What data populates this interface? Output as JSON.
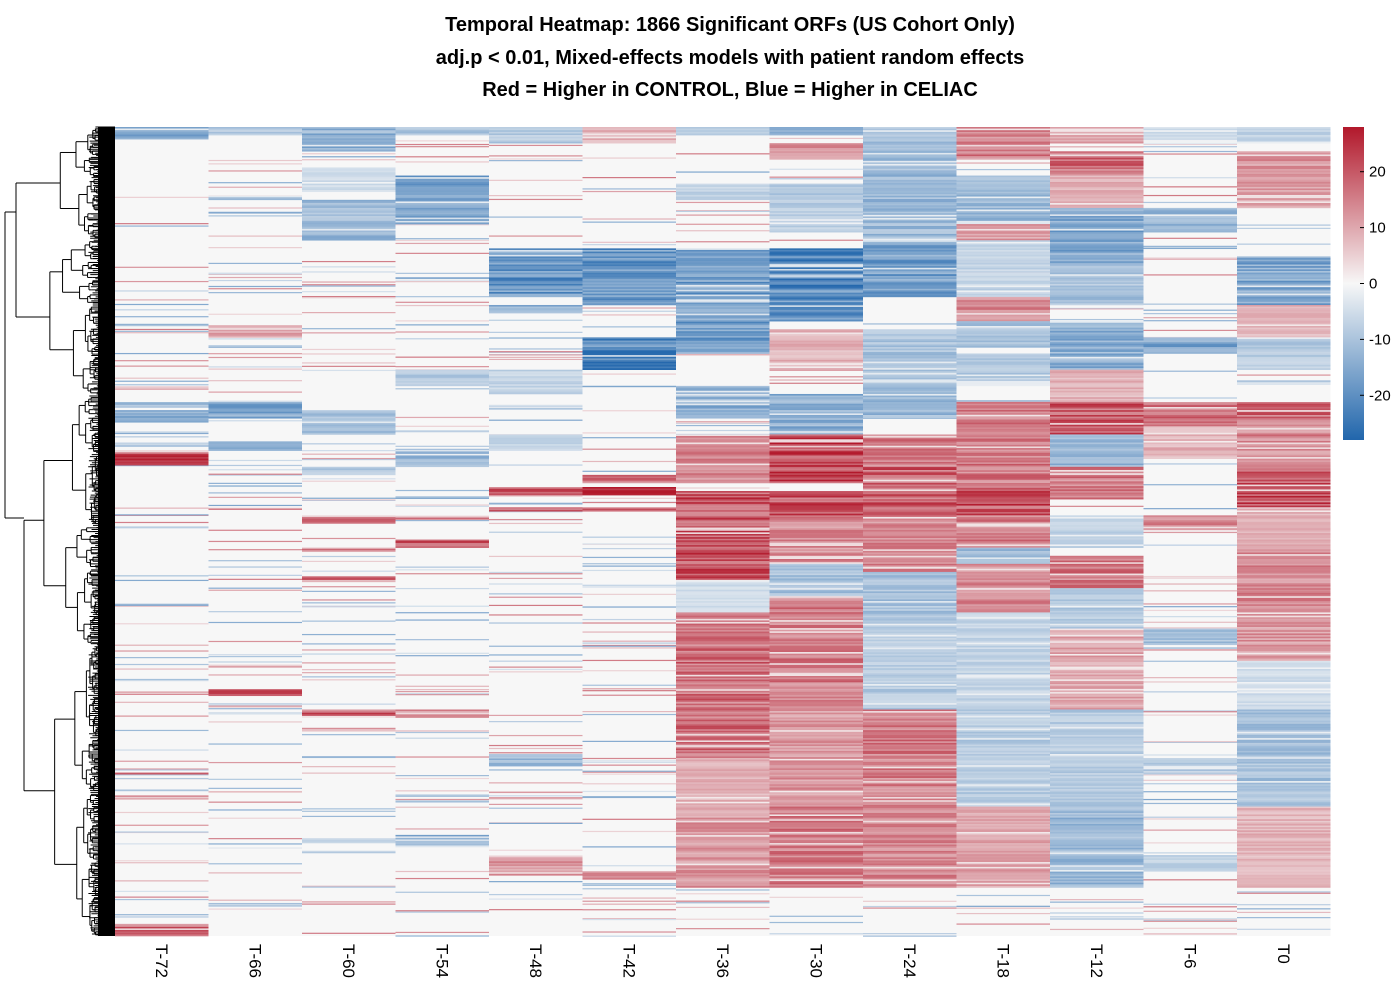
{
  "chart_data": {
    "type": "heatmap",
    "title": "Temporal Heatmap: 1866 Significant ORFs (US Cohort Only)",
    "subtitle": "adj.p < 0.01, Mixed-effects models with patient random effects",
    "subtitle2": "Red = Higher in CONTROL, Blue = Higher in CELIAC",
    "columns": [
      "T-72",
      "T-66",
      "T-60",
      "T-54",
      "T-48",
      "T-42",
      "T-36",
      "T-30",
      "T-24",
      "T-18",
      "T-12",
      "T-6",
      "T0"
    ],
    "n_rows": 1866,
    "row_dendrogram": true,
    "colorbar": {
      "range": [
        -28,
        28
      ],
      "ticks": [
        -20,
        -10,
        0,
        10,
        20
      ],
      "low_color": "#2166ac",
      "mid_color": "#f7f7f7",
      "high_color": "#b2182b",
      "placement": "right"
    },
    "column_blocks": [
      {
        "column": "T-72",
        "blocks": [
          [
            0,
            0.015,
            -18
          ],
          [
            0.34,
            0.345,
            -14
          ],
          [
            0.35,
            0.365,
            -16
          ],
          [
            0.39,
            0.395,
            -10
          ],
          [
            0.4,
            0.418,
            24
          ],
          [
            0.798,
            0.8,
            18
          ],
          [
            0.985,
            1.0,
            20
          ]
        ]
      },
      {
        "column": "T-66",
        "blocks": [
          [
            0,
            0.01,
            -10
          ],
          [
            0.085,
            0.09,
            -14
          ],
          [
            0.18,
            0.182,
            -8
          ],
          [
            0.245,
            0.26,
            12
          ],
          [
            0.34,
            0.36,
            -18
          ],
          [
            0.39,
            0.4,
            -14
          ],
          [
            0.47,
            0.473,
            14
          ],
          [
            0.695,
            0.703,
            22
          ],
          [
            0.715,
            0.717,
            10
          ],
          [
            0.89,
            0.892,
            -8
          ]
        ]
      },
      {
        "column": "T-60",
        "blocks": [
          [
            0,
            0.03,
            -16
          ],
          [
            0.05,
            0.08,
            -6
          ],
          [
            0.09,
            0.14,
            -14
          ],
          [
            0.35,
            0.38,
            -12
          ],
          [
            0.42,
            0.43,
            -10
          ],
          [
            0.48,
            0.49,
            18
          ],
          [
            0.52,
            0.525,
            16
          ],
          [
            0.555,
            0.56,
            20
          ],
          [
            0.72,
            0.73,
            22
          ],
          [
            0.88,
            0.885,
            -10
          ]
        ]
      },
      {
        "column": "T-54",
        "blocks": [
          [
            0,
            0.01,
            -12
          ],
          [
            0.06,
            0.12,
            -18
          ],
          [
            0.3,
            0.32,
            -10
          ],
          [
            0.4,
            0.42,
            -14
          ],
          [
            0.48,
            0.485,
            18
          ],
          [
            0.51,
            0.52,
            24
          ],
          [
            0.72,
            0.73,
            16
          ],
          [
            0.875,
            0.89,
            -16
          ]
        ]
      },
      {
        "column": "T-48",
        "blocks": [
          [
            0,
            0.02,
            -10
          ],
          [
            0.15,
            0.21,
            -22
          ],
          [
            0.22,
            0.23,
            -16
          ],
          [
            0.3,
            0.33,
            -8
          ],
          [
            0.38,
            0.4,
            -8
          ],
          [
            0.445,
            0.455,
            24
          ],
          [
            0.47,
            0.475,
            20
          ],
          [
            0.775,
            0.79,
            -14
          ],
          [
            0.9,
            0.925,
            14
          ]
        ]
      },
      {
        "column": "T-42",
        "blocks": [
          [
            0,
            0.02,
            10
          ],
          [
            0.15,
            0.22,
            -22
          ],
          [
            0.26,
            0.3,
            -24
          ],
          [
            0.43,
            0.44,
            20
          ],
          [
            0.445,
            0.455,
            26
          ],
          [
            0.47,
            0.475,
            22
          ],
          [
            0.92,
            0.93,
            14
          ]
        ]
      },
      {
        "column": "T-36",
        "blocks": [
          [
            0,
            0.01,
            -10
          ],
          [
            0.07,
            0.09,
            -8
          ],
          [
            0.15,
            0.28,
            -20
          ],
          [
            0.32,
            0.36,
            -16
          ],
          [
            0.38,
            0.44,
            16
          ],
          [
            0.45,
            0.56,
            24
          ],
          [
            0.56,
            0.62,
            -6
          ],
          [
            0.6,
            0.78,
            20
          ],
          [
            0.78,
            0.84,
            10
          ],
          [
            0.84,
            0.94,
            14
          ]
        ]
      },
      {
        "column": "T-30",
        "blocks": [
          [
            0,
            0.01,
            -22
          ],
          [
            0.02,
            0.04,
            16
          ],
          [
            0.07,
            0.13,
            -10
          ],
          [
            0.15,
            0.24,
            -24
          ],
          [
            0.25,
            0.3,
            10
          ],
          [
            0.33,
            0.38,
            -16
          ],
          [
            0.38,
            0.44,
            26
          ],
          [
            0.45,
            0.48,
            24
          ],
          [
            0.48,
            0.54,
            16
          ],
          [
            0.54,
            0.58,
            -12
          ],
          [
            0.58,
            0.72,
            18
          ],
          [
            0.72,
            0.84,
            14
          ],
          [
            0.84,
            0.94,
            18
          ]
        ]
      },
      {
        "column": "T-24",
        "blocks": [
          [
            0,
            0.03,
            -12
          ],
          [
            0.03,
            0.14,
            -14
          ],
          [
            0.14,
            0.21,
            -20
          ],
          [
            0.25,
            0.3,
            -12
          ],
          [
            0.3,
            0.36,
            -14
          ],
          [
            0.38,
            0.42,
            18
          ],
          [
            0.42,
            0.48,
            22
          ],
          [
            0.48,
            0.55,
            16
          ],
          [
            0.55,
            0.62,
            -12
          ],
          [
            0.62,
            0.72,
            -10
          ],
          [
            0.72,
            0.84,
            18
          ],
          [
            0.84,
            0.94,
            16
          ]
        ]
      },
      {
        "column": "T-18",
        "blocks": [
          [
            0,
            0.04,
            18
          ],
          [
            0.06,
            0.12,
            -14
          ],
          [
            0.12,
            0.14,
            14
          ],
          [
            0.14,
            0.21,
            -8
          ],
          [
            0.21,
            0.24,
            16
          ],
          [
            0.24,
            0.27,
            -12
          ],
          [
            0.28,
            0.32,
            -10
          ],
          [
            0.34,
            0.44,
            18
          ],
          [
            0.44,
            0.48,
            24
          ],
          [
            0.48,
            0.52,
            18
          ],
          [
            0.52,
            0.54,
            -16
          ],
          [
            0.54,
            0.6,
            16
          ],
          [
            0.6,
            0.72,
            -8
          ],
          [
            0.72,
            0.84,
            -10
          ],
          [
            0.84,
            0.94,
            12
          ]
        ]
      },
      {
        "column": "T-12",
        "blocks": [
          [
            0,
            0.02,
            12
          ],
          [
            0.03,
            0.06,
            20
          ],
          [
            0.06,
            0.1,
            10
          ],
          [
            0.1,
            0.17,
            -18
          ],
          [
            0.17,
            0.22,
            -12
          ],
          [
            0.24,
            0.3,
            -16
          ],
          [
            0.3,
            0.34,
            10
          ],
          [
            0.34,
            0.38,
            24
          ],
          [
            0.38,
            0.42,
            -14
          ],
          [
            0.42,
            0.46,
            18
          ],
          [
            0.48,
            0.52,
            -8
          ],
          [
            0.53,
            0.57,
            18
          ],
          [
            0.57,
            0.62,
            -10
          ],
          [
            0.62,
            0.72,
            12
          ],
          [
            0.72,
            0.84,
            -10
          ],
          [
            0.84,
            0.94,
            -14
          ]
        ]
      },
      {
        "column": "T-6",
        "blocks": [
          [
            0,
            0.02,
            -6
          ],
          [
            0.1,
            0.13,
            -14
          ],
          [
            0.26,
            0.28,
            -20
          ],
          [
            0.34,
            0.37,
            20
          ],
          [
            0.37,
            0.41,
            10
          ],
          [
            0.48,
            0.5,
            18
          ],
          [
            0.62,
            0.64,
            -12
          ],
          [
            0.78,
            0.8,
            -10
          ],
          [
            0.9,
            0.92,
            -8
          ]
        ]
      },
      {
        "column": "T0",
        "blocks": [
          [
            0,
            0.02,
            -8
          ],
          [
            0.03,
            0.1,
            14
          ],
          [
            0.16,
            0.22,
            -18
          ],
          [
            0.22,
            0.26,
            10
          ],
          [
            0.26,
            0.3,
            -10
          ],
          [
            0.34,
            0.36,
            22
          ],
          [
            0.36,
            0.42,
            16
          ],
          [
            0.42,
            0.47,
            24
          ],
          [
            0.47,
            0.52,
            10
          ],
          [
            0.52,
            0.6,
            16
          ],
          [
            0.6,
            0.66,
            14
          ],
          [
            0.66,
            0.72,
            -6
          ],
          [
            0.72,
            0.84,
            -12
          ],
          [
            0.84,
            0.94,
            10
          ]
        ]
      }
    ]
  }
}
